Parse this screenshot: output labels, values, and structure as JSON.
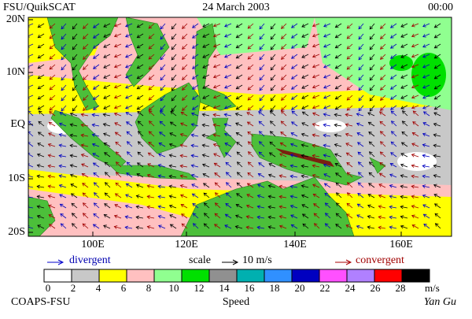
{
  "header": {
    "left": "FSU/QuikSCAT",
    "center": "24 March 2003",
    "right": "00:00"
  },
  "map": {
    "lat_labels": [
      "20N",
      "10N",
      "EQ",
      "10S",
      "20S"
    ],
    "lon_labels": [
      "100E",
      "120E",
      "140E",
      "160E"
    ]
  },
  "legend": {
    "divergent": "divergent",
    "scale": "scale",
    "scale_value": "10 m/s",
    "convergent": "convergent"
  },
  "colorbar": {
    "ticks": [
      0,
      2,
      4,
      6,
      8,
      10,
      12,
      14,
      16,
      18,
      20,
      22,
      24,
      26,
      28
    ],
    "unit": "m/s",
    "title": "Speed",
    "colors": [
      "#ffffff",
      "#c8c8c8",
      "#ffff00",
      "#ffc0c0",
      "#90ff90",
      "#00e000",
      "#909090",
      "#00b0b0",
      "#3090ff",
      "#0000c0",
      "#ff50ff",
      "#b080ff",
      "#ff0000",
      "#c04000",
      "#000000"
    ]
  },
  "footer": {
    "left": "COAPS-FSU",
    "right": "Yan Gu"
  }
}
